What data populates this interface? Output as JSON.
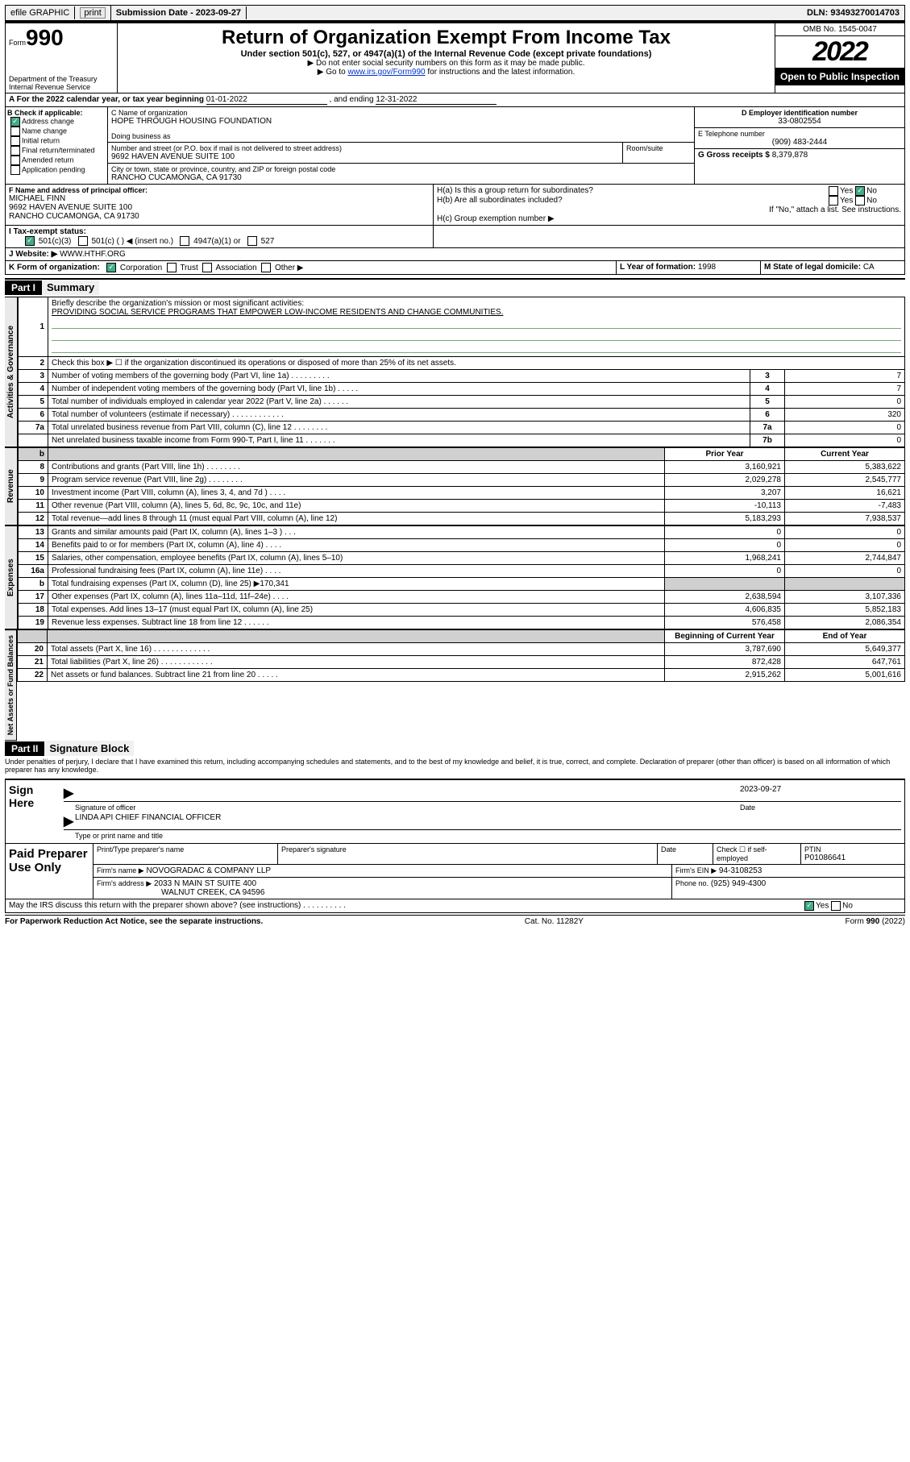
{
  "topbar": {
    "efile": "efile GRAPHIC",
    "print": "print",
    "subdate_label": "Submission Date - 2023-09-27",
    "dln": "DLN: 93493270014703"
  },
  "header": {
    "form_label": "Form",
    "form_num": "990",
    "dept1": "Department of the Treasury",
    "dept2": "Internal Revenue Service",
    "title": "Return of Organization Exempt From Income Tax",
    "sub1": "Under section 501(c), 527, or 4947(a)(1) of the Internal Revenue Code (except private foundations)",
    "sub2": "▶ Do not enter social security numbers on this form as it may be made public.",
    "sub3_pre": "▶ Go to ",
    "sub3_link": "www.irs.gov/Form990",
    "sub3_post": " for instructions and the latest information.",
    "omb": "OMB No. 1545-0047",
    "year": "2022",
    "open": "Open to Public Inspection"
  },
  "lineA": {
    "text_pre": "A For the 2022 calendar year, or tax year beginning ",
    "begin": "01-01-2022",
    "mid": " , and ending ",
    "end": "12-31-2022"
  },
  "B": {
    "title": "B Check if applicable:",
    "opts": [
      "Address change",
      "Name change",
      "Initial return",
      "Final return/terminated",
      "Amended return",
      "Application pending"
    ],
    "checked_idx": 0
  },
  "C": {
    "label": "C Name of organization",
    "name": "HOPE THROUGH HOUSING FOUNDATION",
    "dba_label": "Doing business as",
    "addr_label": "Number and street (or P.O. box if mail is not delivered to street address)",
    "room_label": "Room/suite",
    "addr": "9692 HAVEN AVENUE SUITE 100",
    "city_label": "City or town, state or province, country, and ZIP or foreign postal code",
    "city": "RANCHO CUCAMONGA, CA  91730"
  },
  "D": {
    "label": "D Employer identification number",
    "val": "33-0802554"
  },
  "E": {
    "label": "E Telephone number",
    "val": "(909) 483-2444"
  },
  "G": {
    "label": "G Gross receipts $",
    "val": "8,379,878"
  },
  "F": {
    "label": "F Name and address of principal officer:",
    "name": "MICHAEL FINN",
    "addr1": "9692 HAVEN AVENUE SUITE 100",
    "addr2": "RANCHO CUCAMONGA, CA  91730"
  },
  "H": {
    "ha_label": "H(a)  Is this a group return for subordinates?",
    "ha_yes": "Yes",
    "ha_no": "No",
    "hb_label": "H(b)  Are all subordinates included?",
    "hb_note": "If \"No,\" attach a list. See instructions.",
    "hc_label": "H(c)  Group exemption number ▶"
  },
  "I": {
    "label": "I   Tax-exempt status:",
    "opts": [
      "501(c)(3)",
      "501(c) (   ) ◀ (insert no.)",
      "4947(a)(1) or",
      "527"
    ],
    "checked_idx": 0
  },
  "J": {
    "label": "J   Website: ▶",
    "val": "WWW.HTHF.ORG"
  },
  "K": {
    "label": "K Form of organization:",
    "opts": [
      "Corporation",
      "Trust",
      "Association",
      "Other ▶"
    ],
    "checked_idx": 0
  },
  "L": {
    "label": "L Year of formation: ",
    "val": "1998"
  },
  "M": {
    "label": "M State of legal domicile: ",
    "val": "CA"
  },
  "part1": {
    "hdr": "Part I",
    "title": "Summary"
  },
  "q1": {
    "num": "1",
    "text": "Briefly describe the organization's mission or most significant activities:",
    "val": "PROVIDING SOCIAL SERVICE PROGRAMS THAT EMPOWER LOW-INCOME RESIDENTS AND CHANGE COMMUNITIES."
  },
  "q2": {
    "num": "2",
    "text": "Check this box ▶ ☐  if the organization discontinued its operations or disposed of more than 25% of its net assets."
  },
  "vtabs": {
    "gov": "Activities & Governance",
    "rev": "Revenue",
    "exp": "Expenses",
    "net": "Net Assets or Fund Balances"
  },
  "gov_lines": [
    {
      "n": "3",
      "t": "Number of voting members of the governing body (Part VI, line 1a)   .    .    .    .    .    .    .    .    .",
      "rn": "3",
      "v": "7"
    },
    {
      "n": "4",
      "t": "Number of independent voting members of the governing body (Part VI, line 1b)   .    .    .    .    .",
      "rn": "4",
      "v": "7"
    },
    {
      "n": "5",
      "t": "Total number of individuals employed in calendar year 2022 (Part V, line 2a)   .    .    .    .    .    .",
      "rn": "5",
      "v": "0"
    },
    {
      "n": "6",
      "t": "Total number of volunteers (estimate if necessary)   .    .    .    .    .    .    .    .    .    .    .    .",
      "rn": "6",
      "v": "320"
    },
    {
      "n": "7a",
      "t": "Total unrelated business revenue from Part VIII, column (C), line 12   .    .    .    .    .    .    .    .",
      "rn": "7a",
      "v": "0"
    },
    {
      "n": "",
      "t": "Net unrelated business taxable income from Form 990-T, Part I, line 11   .    .    .    .    .    .    .",
      "rn": "7b",
      "v": "0"
    }
  ],
  "two_col_hdr": {
    "prior": "Prior Year",
    "curr": "Current Year"
  },
  "rev_lines": [
    {
      "n": "8",
      "t": "Contributions and grants (Part VIII, line 1h)   .    .    .    .    .    .    .    .",
      "p": "3,160,921",
      "c": "5,383,622"
    },
    {
      "n": "9",
      "t": "Program service revenue (Part VIII, line 2g)   .    .    .    .    .    .    .    .",
      "p": "2,029,278",
      "c": "2,545,777"
    },
    {
      "n": "10",
      "t": "Investment income (Part VIII, column (A), lines 3, 4, and 7d )   .    .    .    .",
      "p": "3,207",
      "c": "16,621"
    },
    {
      "n": "11",
      "t": "Other revenue (Part VIII, column (A), lines 5, 6d, 8c, 9c, 10c, and 11e)",
      "p": "-10,113",
      "c": "-7,483"
    },
    {
      "n": "12",
      "t": "Total revenue—add lines 8 through 11 (must equal Part VIII, column (A), line 12)",
      "p": "5,183,293",
      "c": "7,938,537"
    }
  ],
  "exp_lines": [
    {
      "n": "13",
      "t": "Grants and similar amounts paid (Part IX, column (A), lines 1–3 )   .    .    .",
      "p": "0",
      "c": "0"
    },
    {
      "n": "14",
      "t": "Benefits paid to or for members (Part IX, column (A), line 4)   .    .    .    .",
      "p": "0",
      "c": "0"
    },
    {
      "n": "15",
      "t": "Salaries, other compensation, employee benefits (Part IX, column (A), lines 5–10)",
      "p": "1,968,241",
      "c": "2,744,847"
    },
    {
      "n": "16a",
      "t": "Professional fundraising fees (Part IX, column (A), line 11e)   .    .    .    .",
      "p": "0",
      "c": "0"
    },
    {
      "n": "b",
      "t": "Total fundraising expenses (Part IX, column (D), line 25) ▶170,341",
      "p": "",
      "c": "",
      "shade": true
    },
    {
      "n": "17",
      "t": "Other expenses (Part IX, column (A), lines 11a–11d, 11f–24e)   .    .    .    .",
      "p": "2,638,594",
      "c": "3,107,336"
    },
    {
      "n": "18",
      "t": "Total expenses. Add lines 13–17 (must equal Part IX, column (A), line 25)",
      "p": "4,606,835",
      "c": "5,852,183"
    },
    {
      "n": "19",
      "t": "Revenue less expenses. Subtract line 18 from line 12   .    .    .    .    .    .",
      "p": "576,458",
      "c": "2,086,354"
    }
  ],
  "net_hdr": {
    "prior": "Beginning of Current Year",
    "curr": "End of Year"
  },
  "net_lines": [
    {
      "n": "20",
      "t": "Total assets (Part X, line 16)   .    .    .    .    .    .    .    .    .    .    .    .    .",
      "p": "3,787,690",
      "c": "5,649,377"
    },
    {
      "n": "21",
      "t": "Total liabilities (Part X, line 26)   .    .    .    .    .    .    .    .    .    .    .    .",
      "p": "872,428",
      "c": "647,761"
    },
    {
      "n": "22",
      "t": "Net assets or fund balances. Subtract line 21 from line 20   .    .    .    .    .",
      "p": "2,915,262",
      "c": "5,001,616"
    }
  ],
  "part2": {
    "hdr": "Part II",
    "title": "Signature Block"
  },
  "sig_decl": "Under penalties of perjury, I declare that I have examined this return, including accompanying schedules and statements, and to the best of my knowledge and belief, it is true, correct, and complete. Declaration of preparer (other than officer) is based on all information of which preparer has any knowledge.",
  "sign_here": "Sign Here",
  "sig_officer_label": "Signature of officer",
  "sig_date_label": "Date",
  "sig_date": "2023-09-27",
  "sig_name": "LINDA API  CHIEF FINANCIAL OFFICER",
  "sig_name_label": "Type or print name and title",
  "paid": {
    "title": "Paid Preparer Use Only",
    "col1": "Print/Type preparer's name",
    "col2": "Preparer's signature",
    "col3": "Date",
    "col4a": "Check ☐ if self-employed",
    "col5a": "PTIN",
    "col5b": "P01086641",
    "firm_label": "Firm's name    ▶",
    "firm": "NOVOGRADAC & COMPANY LLP",
    "ein_label": "Firm's EIN ▶",
    "ein": "94-3108253",
    "addr_label": "Firm's address ▶",
    "addr1": "2033 N MAIN ST SUITE 400",
    "addr2": "WALNUT CREEK, CA  94596",
    "phone_label": "Phone no.",
    "phone": "(925) 949-4300"
  },
  "discuss": {
    "text": "May the IRS discuss this return with the preparer shown above? (see instructions)   .    .    .    .    .    .    .    .    .    .",
    "yes": "Yes",
    "no": "No"
  },
  "footer": {
    "left": "For Paperwork Reduction Act Notice, see the separate instructions.",
    "mid": "Cat. No. 11282Y",
    "right_pre": "Form ",
    "right_b": "990",
    "right_post": " (2022)"
  }
}
